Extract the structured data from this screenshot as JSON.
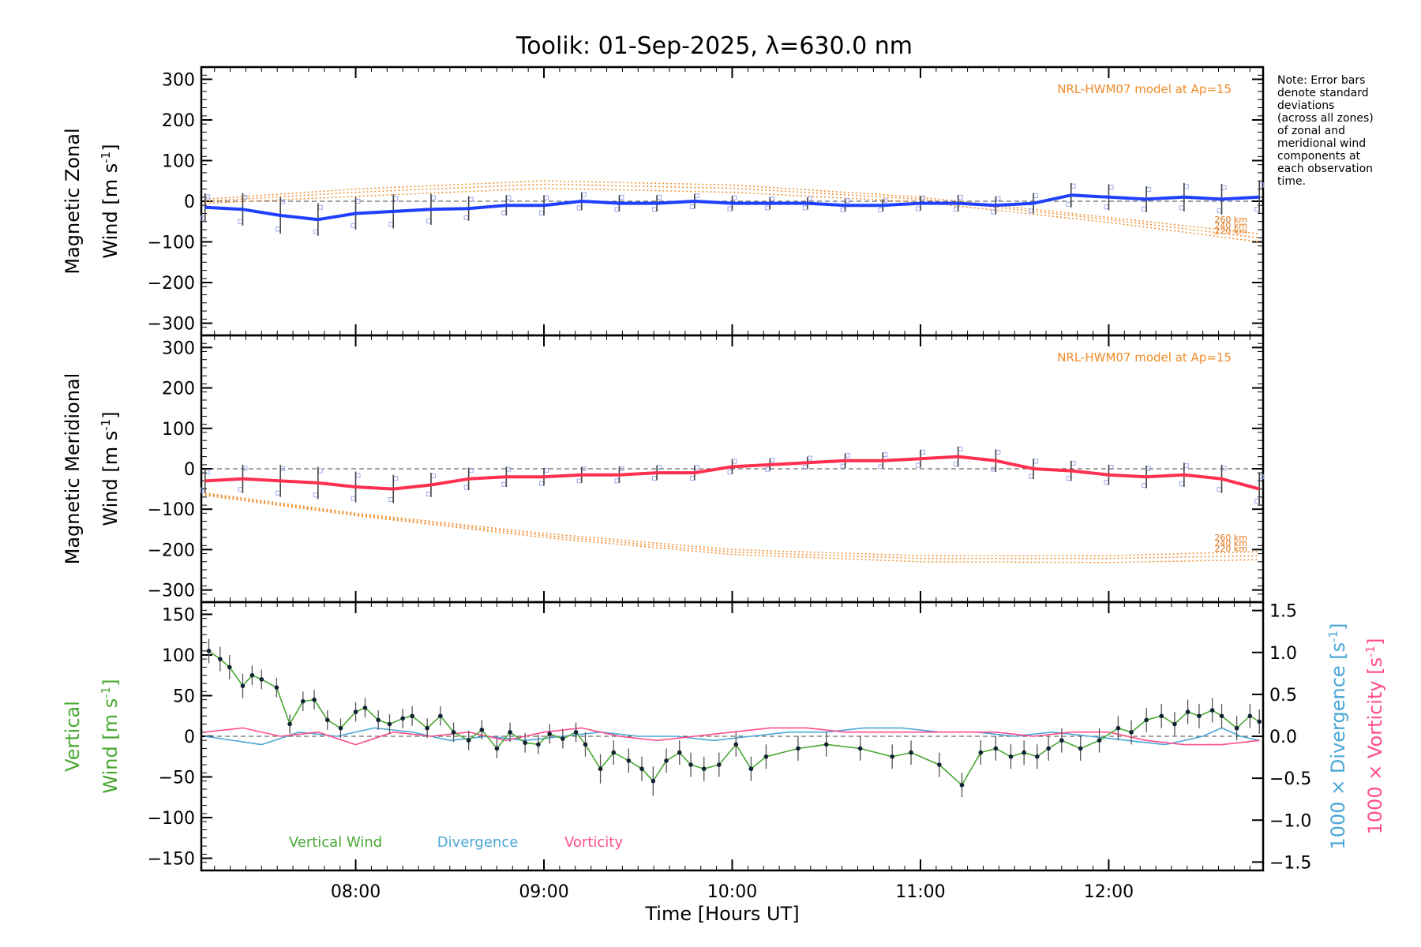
{
  "title": "Toolik: 01-Sep-2025, λ=630.0 nm",
  "note": [
    "Note: Error bars",
    "denote standard",
    "deviations",
    "(across all zones)",
    "of zonal and",
    "meridional wind",
    "components at",
    "each observation",
    "time."
  ],
  "xaxis": {
    "label": "Time [Hours UT]",
    "range": [
      7.18,
      12.82
    ],
    "ticks": [
      8,
      9,
      10,
      11,
      12
    ],
    "tick_labels": [
      "08:00",
      "09:00",
      "10:00",
      "11:00",
      "12:00"
    ]
  },
  "colors": {
    "zonal": "#2040ff",
    "meridional": "#ff3050",
    "vertical": "#48a832",
    "divergence": "#4aa6d8",
    "vorticity": "#ff4d8a",
    "model": "#f08c2a",
    "errorbar": "#444444",
    "scatter": "#9fa8ee"
  },
  "chart_data": [
    {
      "type": "line",
      "panel": "zonal",
      "ylabel_lines": [
        "Magnetic Zonal",
        "Wind [m s-1]"
      ],
      "ylim": [
        -330,
        330
      ],
      "yticks": [
        -300,
        -200,
        -100,
        0,
        100,
        200,
        300
      ],
      "ytick_labels": [
        "−300",
        "−200",
        "−100",
        "0",
        "100",
        "200",
        "300"
      ],
      "model_label": "NRL-HWM07 model at Ap=15",
      "model_altitudes": [
        "260 km",
        "240 km",
        "220 km"
      ],
      "x": [
        7.2,
        7.4,
        7.6,
        7.8,
        8.0,
        8.2,
        8.4,
        8.6,
        8.8,
        9.0,
        9.2,
        9.4,
        9.6,
        9.8,
        10.0,
        10.2,
        10.4,
        10.6,
        10.8,
        11.0,
        11.2,
        11.4,
        11.6,
        11.8,
        12.0,
        12.2,
        12.4,
        12.6,
        12.8
      ],
      "values": [
        -15,
        -20,
        -35,
        -45,
        -30,
        -25,
        -20,
        -18,
        -10,
        -10,
        0,
        -5,
        -5,
        0,
        -5,
        -5,
        -5,
        -10,
        -10,
        -5,
        -5,
        -10,
        -5,
        15,
        10,
        5,
        10,
        5,
        10
      ],
      "errors": [
        35,
        40,
        45,
        40,
        40,
        42,
        38,
        30,
        25,
        25,
        22,
        20,
        20,
        18,
        18,
        15,
        15,
        15,
        15,
        18,
        20,
        22,
        25,
        30,
        32,
        32,
        35,
        38,
        40
      ],
      "model_series": [
        {
          "name": "260 km",
          "x": [
            7.2,
            8.0,
            9.0,
            10.0,
            11.0,
            12.0,
            12.8
          ],
          "values": [
            5,
            30,
            50,
            40,
            10,
            -40,
            -80
          ]
        },
        {
          "name": "240 km",
          "x": [
            7.2,
            8.0,
            9.0,
            10.0,
            11.0,
            12.0,
            12.8
          ],
          "values": [
            0,
            22,
            42,
            32,
            5,
            -45,
            -90
          ]
        },
        {
          "name": "220 km",
          "x": [
            7.2,
            8.0,
            9.0,
            10.0,
            11.0,
            12.0,
            12.8
          ],
          "values": [
            -5,
            12,
            32,
            22,
            -2,
            -52,
            -100
          ]
        }
      ]
    },
    {
      "type": "line",
      "panel": "meridional",
      "ylabel_lines": [
        "Magnetic Meridional",
        "Wind [m s-1]"
      ],
      "ylim": [
        -330,
        330
      ],
      "yticks": [
        -300,
        -200,
        -100,
        0,
        100,
        200,
        300
      ],
      "ytick_labels": [
        "−300",
        "−200",
        "−100",
        "0",
        "100",
        "200",
        "300"
      ],
      "model_label": "NRL-HWM07 model at Ap=15",
      "model_altitudes": [
        "260 km",
        "240 km",
        "220 km"
      ],
      "x": [
        7.2,
        7.4,
        7.6,
        7.8,
        8.0,
        8.2,
        8.4,
        8.6,
        8.8,
        9.0,
        9.2,
        9.4,
        9.6,
        9.8,
        10.0,
        10.2,
        10.4,
        10.6,
        10.8,
        11.0,
        11.2,
        11.4,
        11.6,
        11.8,
        12.0,
        12.2,
        12.4,
        12.6,
        12.8
      ],
      "values": [
        -30,
        -25,
        -30,
        -35,
        -45,
        -50,
        -40,
        -25,
        -20,
        -20,
        -15,
        -15,
        -10,
        -10,
        5,
        10,
        15,
        20,
        20,
        25,
        30,
        20,
        0,
        -5,
        -15,
        -20,
        -15,
        -25,
        -50
      ],
      "errors": [
        30,
        35,
        40,
        40,
        38,
        35,
        30,
        28,
        25,
        22,
        20,
        20,
        18,
        18,
        18,
        15,
        15,
        18,
        20,
        22,
        25,
        28,
        25,
        25,
        25,
        28,
        30,
        35,
        40
      ],
      "model_series": [
        {
          "name": "260 km",
          "x": [
            7.2,
            8.0,
            9.0,
            10.0,
            11.0,
            12.0,
            12.8
          ],
          "values": [
            -60,
            -110,
            -160,
            -200,
            -215,
            -215,
            -205
          ]
        },
        {
          "name": "240 km",
          "x": [
            7.2,
            8.0,
            9.0,
            10.0,
            11.0,
            12.0,
            12.8
          ],
          "values": [
            -63,
            -113,
            -165,
            -206,
            -222,
            -222,
            -215
          ]
        },
        {
          "name": "220 km",
          "x": [
            7.2,
            8.0,
            9.0,
            10.0,
            11.0,
            12.0,
            12.8
          ],
          "values": [
            -66,
            -116,
            -170,
            -212,
            -230,
            -232,
            -225
          ]
        }
      ]
    },
    {
      "type": "line",
      "panel": "vertical",
      "ylabel_lines": [
        "Vertical",
        "Wind [m s-1]"
      ],
      "ylim": [
        -165,
        165
      ],
      "yticks": [
        -150,
        -100,
        -50,
        0,
        50,
        100,
        150
      ],
      "ytick_labels": [
        "−150",
        "−100",
        "−50",
        "0",
        "50",
        "100",
        "150"
      ],
      "y2lim": [
        -1.6,
        1.6
      ],
      "y2ticks": [
        -1.5,
        -1.0,
        -0.5,
        0.0,
        0.5,
        1.0,
        1.5
      ],
      "y2tick_labels": [
        "−1.5",
        "−1.0",
        "−0.5",
        "0.0",
        "0.5",
        "1.0",
        "1.5"
      ],
      "y2label_divergence": "1000 × Divergence [s-1]",
      "y2label_vorticity": "1000 × Vorticity [s-1]",
      "legend": [
        "Vertical Wind",
        "Divergence",
        "Vorticity"
      ],
      "x": [
        7.22,
        7.28,
        7.33,
        7.4,
        7.45,
        7.5,
        7.58,
        7.65,
        7.72,
        7.78,
        7.85,
        7.92,
        8.0,
        8.05,
        8.12,
        8.18,
        8.25,
        8.3,
        8.38,
        8.45,
        8.52,
        8.6,
        8.67,
        8.75,
        8.82,
        8.9,
        8.97,
        9.03,
        9.1,
        9.17,
        9.22,
        9.3,
        9.37,
        9.45,
        9.52,
        9.58,
        9.65,
        9.72,
        9.78,
        9.85,
        9.93,
        10.02,
        10.1,
        10.18,
        10.35,
        10.5,
        10.68,
        10.85,
        10.95,
        11.1,
        11.22,
        11.32,
        11.4,
        11.48,
        11.55,
        11.62,
        11.68,
        11.75,
        11.85,
        11.95,
        12.05,
        12.12,
        12.2,
        12.28,
        12.35,
        12.42,
        12.48,
        12.55,
        12.6,
        12.68,
        12.75,
        12.8
      ],
      "values": [
        105,
        95,
        85,
        62,
        75,
        70,
        60,
        15,
        43,
        45,
        20,
        10,
        30,
        35,
        20,
        15,
        22,
        25,
        10,
        25,
        5,
        -5,
        8,
        -15,
        5,
        -8,
        -10,
        3,
        -3,
        5,
        -10,
        -40,
        -20,
        -30,
        -40,
        -55,
        -30,
        -20,
        -35,
        -40,
        -35,
        -10,
        -40,
        -25,
        -15,
        -10,
        -15,
        -25,
        -20,
        -35,
        -60,
        -20,
        -15,
        -25,
        -20,
        -25,
        -15,
        -5,
        -15,
        -5,
        10,
        5,
        20,
        25,
        15,
        30,
        25,
        32,
        25,
        10,
        25,
        18
      ],
      "errors": [
        15,
        15,
        15,
        15,
        12,
        12,
        12,
        12,
        12,
        12,
        12,
        12,
        12,
        12,
        12,
        12,
        12,
        12,
        12,
        12,
        12,
        12,
        12,
        12,
        12,
        12,
        12,
        12,
        12,
        12,
        15,
        18,
        15,
        15,
        15,
        18,
        15,
        15,
        15,
        15,
        15,
        15,
        15,
        15,
        15,
        15,
        15,
        15,
        15,
        15,
        15,
        15,
        15,
        15,
        15,
        15,
        15,
        15,
        15,
        15,
        15,
        15,
        15,
        15,
        15,
        15,
        15,
        15,
        15,
        15,
        15,
        15
      ],
      "divergence": {
        "x": [
          7.2,
          7.5,
          7.7,
          7.9,
          8.1,
          8.3,
          8.5,
          8.7,
          8.9,
          9.1,
          9.3,
          9.5,
          9.7,
          9.9,
          10.1,
          10.3,
          10.5,
          10.7,
          10.9,
          11.1,
          11.3,
          11.5,
          11.7,
          11.9,
          12.1,
          12.3,
          12.5,
          12.6,
          12.7,
          12.8
        ],
        "values": [
          0.0,
          -0.1,
          0.05,
          0.0,
          0.1,
          0.05,
          -0.05,
          0.0,
          -0.05,
          0.0,
          0.05,
          0.0,
          0.0,
          -0.05,
          0.0,
          0.05,
          0.05,
          0.1,
          0.1,
          0.05,
          0.05,
          0.0,
          0.05,
          0.0,
          -0.05,
          -0.1,
          0.0,
          0.1,
          0.0,
          -0.05
        ]
      },
      "vorticity": {
        "x": [
          7.2,
          7.4,
          7.6,
          7.8,
          8.0,
          8.2,
          8.4,
          8.6,
          8.8,
          9.0,
          9.2,
          9.4,
          9.6,
          9.8,
          10.0,
          10.2,
          10.4,
          10.6,
          10.8,
          11.0,
          11.2,
          11.4,
          11.6,
          11.8,
          12.0,
          12.2,
          12.4,
          12.6,
          12.8
        ],
        "values": [
          0.05,
          0.1,
          0.0,
          0.05,
          -0.1,
          0.05,
          0.0,
          0.05,
          -0.05,
          0.05,
          0.1,
          0.0,
          -0.05,
          0.0,
          0.05,
          0.1,
          0.1,
          0.05,
          0.05,
          0.05,
          0.05,
          0.05,
          0.0,
          0.05,
          0.05,
          -0.05,
          -0.1,
          -0.1,
          -0.05
        ]
      }
    }
  ]
}
